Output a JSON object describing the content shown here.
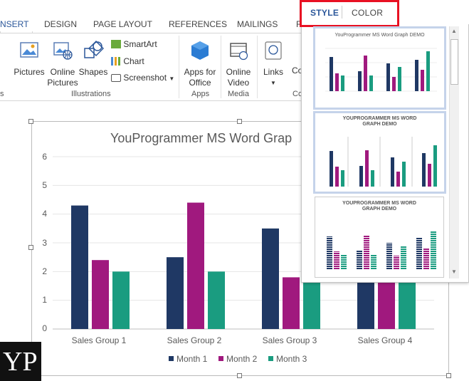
{
  "ribbon": {
    "tabs": [
      "NSERT",
      "DESIGN",
      "PAGE LAYOUT",
      "REFERENCES",
      "MAILINGS",
      "R"
    ],
    "buttons": {
      "pictures": "Pictures",
      "online_pictures": "Online Pictures",
      "shapes": "Shapes",
      "smartart": "SmartArt",
      "chart": "Chart",
      "screenshot": "Screenshot",
      "apps_for_office": "Apps for Office",
      "online_video": "Online Video",
      "links": "Links",
      "partial": "Co"
    },
    "groups": {
      "illustrations": "Illustrations",
      "apps": "Apps",
      "media": "Media",
      "partial": "Co",
      "left": "s"
    }
  },
  "panel": {
    "tabs": {
      "style": "STYLE",
      "color": "COLOR"
    },
    "thumb1_title": "YouProgrammer  MS Word Graph DEMO",
    "thumb2_title": "YOUPROGRAMMER MS WORD GRAPH DEMO",
    "thumb3_title": "YOUPROGRAMMER MS WORD GRAPH DEMO"
  },
  "chart_data": {
    "type": "bar",
    "title": "YouProgrammer MS Word Grap",
    "categories": [
      "Sales Group 1",
      "Sales Group 2",
      "Sales Group 3",
      "Sales Group 4"
    ],
    "series": [
      {
        "name": "Month 1",
        "values": [
          4.3,
          2.5,
          3.5,
          4.5
        ],
        "color": "#1f3864"
      },
      {
        "name": "Month 2",
        "values": [
          2.4,
          4.4,
          1.8,
          2.8
        ],
        "color": "#a0197e"
      },
      {
        "name": "Month 3",
        "values": [
          2,
          2,
          3,
          5
        ],
        "color": "#1a9c80"
      }
    ],
    "yticks": [
      "0",
      "1",
      "2",
      "3",
      "4",
      "5",
      "6"
    ],
    "ylim": [
      0,
      6
    ],
    "grid": true,
    "legend": "bottom"
  },
  "logo": "YP"
}
